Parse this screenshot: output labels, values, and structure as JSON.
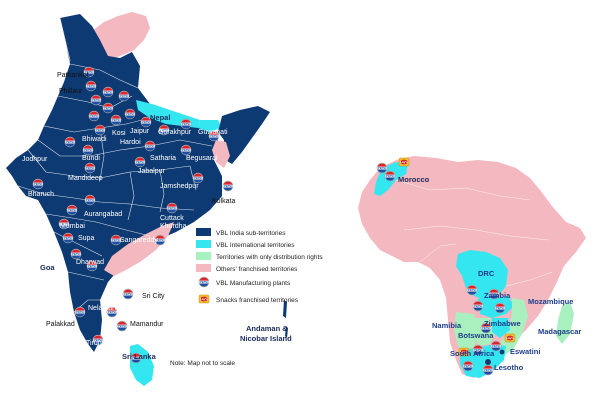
{
  "colors": {
    "vbl_india": "#0e3a73",
    "international": "#33e6f0",
    "distribution": "#a9f0bf",
    "franchised": "#f4b8c0",
    "plant_red": "#d8262e",
    "plant_blue": "#1d4fa3",
    "snack_yellow": "#f2c12e"
  },
  "legend": [
    {
      "key": "vbl_india",
      "label": "VBL India sub-territories"
    },
    {
      "key": "international",
      "label": "VBL International territories"
    },
    {
      "key": "distribution",
      "label": "Territories with only distribution rights"
    },
    {
      "key": "franchised",
      "label": "Others' franchised territories"
    },
    {
      "key": "plant",
      "label": "VBL Manufacturing plants"
    },
    {
      "key": "snack",
      "label": "Snacks franchised territories"
    }
  ],
  "india_labels": {
    "pathankot": "Pathankot",
    "phillaur": "Phillaur",
    "nepal": "Nepal",
    "guwahati": "Guwahati",
    "kosi": "Kosi",
    "jaipur": "Jaipur",
    "gorakhpur": "Gorakhpur",
    "hardoi": "Hardoi",
    "bhiwadi": "Bhiwadi",
    "bundi": "Bundi",
    "jodhpur": "Jodhpur",
    "satharia": "Satharia",
    "begusarai": "Begusarai",
    "jabalpur": "Jabalpur",
    "mandideep": "Mandideep",
    "jamshedpur": "Jamshedpur",
    "bharuch": "Bharuch",
    "kolkata": "Kolkata",
    "aurangabad": "Aurangabad",
    "cuttack": "Cuttack",
    "khurdha": "Khurdha",
    "mumbai": "Mumbai",
    "supa": "Supa",
    "sangareddy": "Sangareddy",
    "goa": "Goa",
    "dharwad": "Dharwad",
    "sri_city": "Sri City",
    "nelamangala": "Nelamangala",
    "palakkad": "Palakkad",
    "mamandur": "Mamandur",
    "tirunelveli": "Tirunelveli",
    "sri_lanka": "Sri Lanka",
    "andaman": "Andaman &",
    "nicobar": "Nicobar Island",
    "note": "Note: Map not to scale"
  },
  "africa_labels": {
    "morocco": "Morocco",
    "drc": "DRC",
    "zambia": "Zambia",
    "mozambique": "Mozambique",
    "namibia": "Namibia",
    "zimbabwe": "Zimbabwe",
    "botswana": "Botswana",
    "madagascar": "Madagascar",
    "eswatini": "Eswatini",
    "south_africa": "South Africa",
    "lesotho": "Lesotho"
  }
}
